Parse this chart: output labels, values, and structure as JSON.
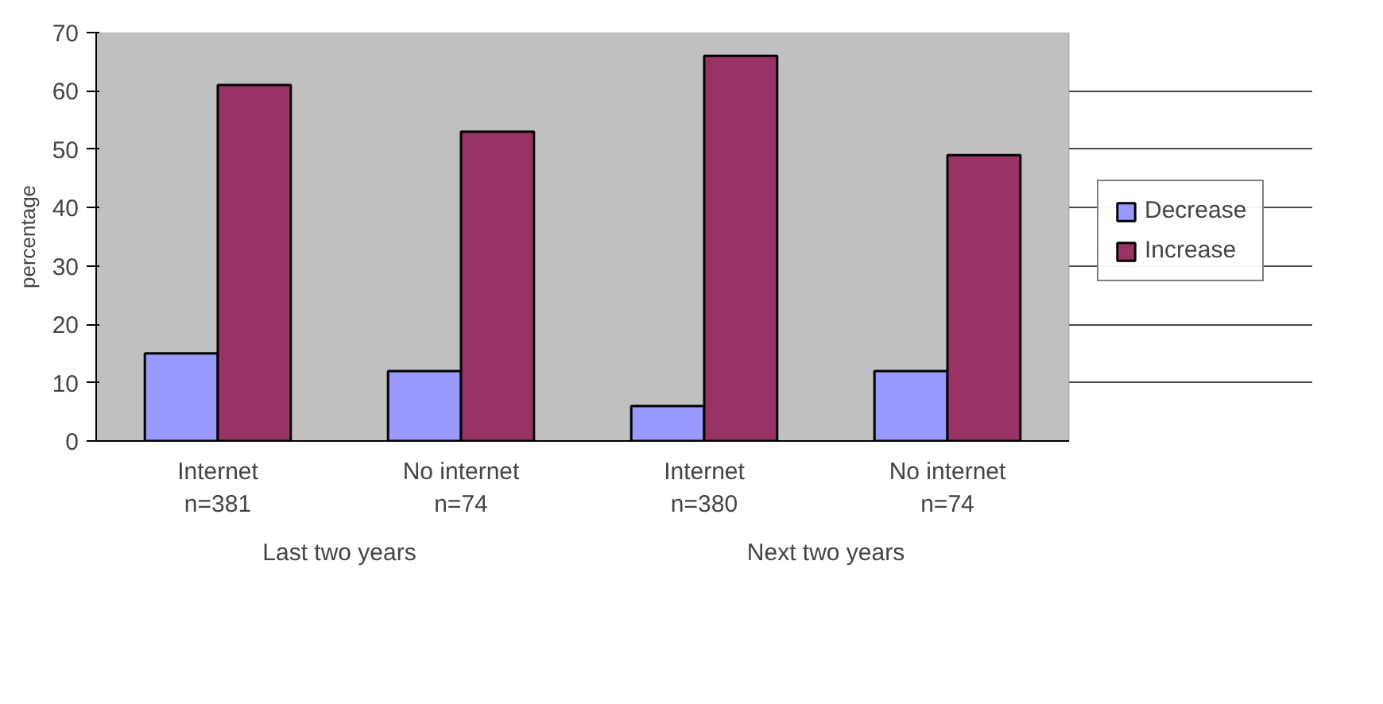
{
  "chart_data": {
    "type": "bar",
    "ylabel": "percentage",
    "categories": [
      "Internet\nn=381",
      "No internet\nn=74",
      "Internet\nn=380",
      "No internet\nn=74"
    ],
    "series": [
      {
        "name": "Decrease",
        "color": "#9999ff",
        "values": [
          15,
          12,
          6,
          12
        ]
      },
      {
        "name": "Increase",
        "color": "#993366",
        "values": [
          61,
          53,
          66,
          49
        ]
      }
    ],
    "annotations": [
      "Last two years",
      "Next two years"
    ],
    "ylim": [
      0,
      70
    ],
    "yticks": [
      0,
      10,
      20,
      30,
      40,
      50,
      60,
      70
    ],
    "grid": "y",
    "legend": "right"
  }
}
